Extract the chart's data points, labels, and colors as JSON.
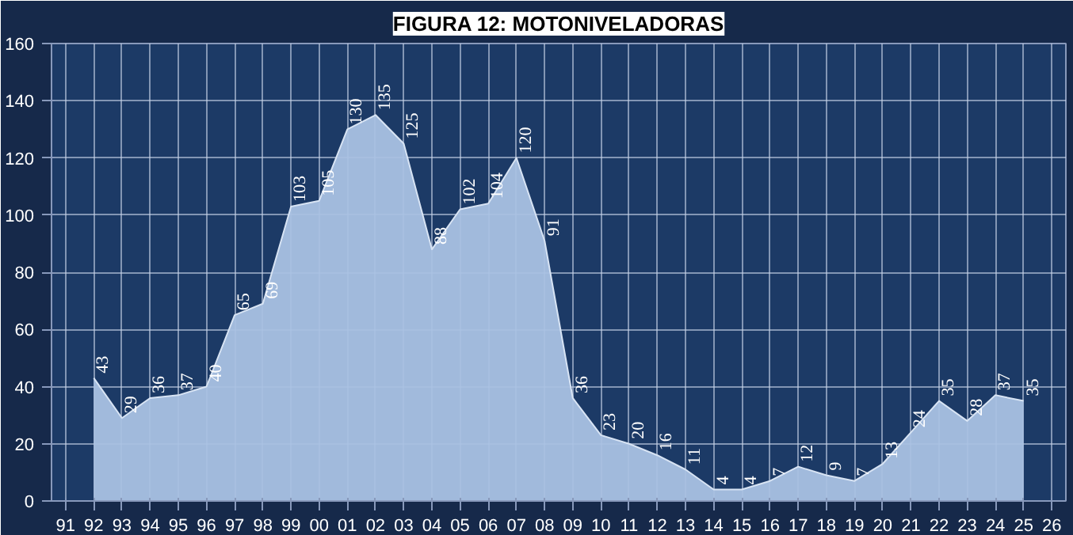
{
  "chart_data": {
    "type": "area",
    "title": "FIGURA 12: MOTONIVELADORAS",
    "categories": [
      "91",
      "92",
      "93",
      "94",
      "95",
      "96",
      "97",
      "98",
      "99",
      "00",
      "01",
      "02",
      "03",
      "04",
      "05",
      "06",
      "07",
      "08",
      "09",
      "10",
      "11",
      "12",
      "13",
      "14",
      "15",
      "16",
      "17",
      "18",
      "19",
      "20",
      "21",
      "22",
      "23",
      "24",
      "25",
      "26"
    ],
    "values": [
      null,
      43,
      29,
      36,
      37,
      40,
      65,
      69,
      103,
      105,
      130,
      135,
      125,
      88,
      102,
      104,
      120,
      91,
      36,
      23,
      20,
      16,
      11,
      4,
      4,
      7,
      12,
      9,
      7,
      13,
      24,
      35,
      28,
      37,
      35,
      null
    ],
    "color": "#a9c1e3",
    "ylim": [
      0,
      160
    ],
    "yticks": [
      0,
      20,
      40,
      60,
      80,
      100,
      120,
      140,
      160
    ],
    "grid": true,
    "data_labels": true
  }
}
